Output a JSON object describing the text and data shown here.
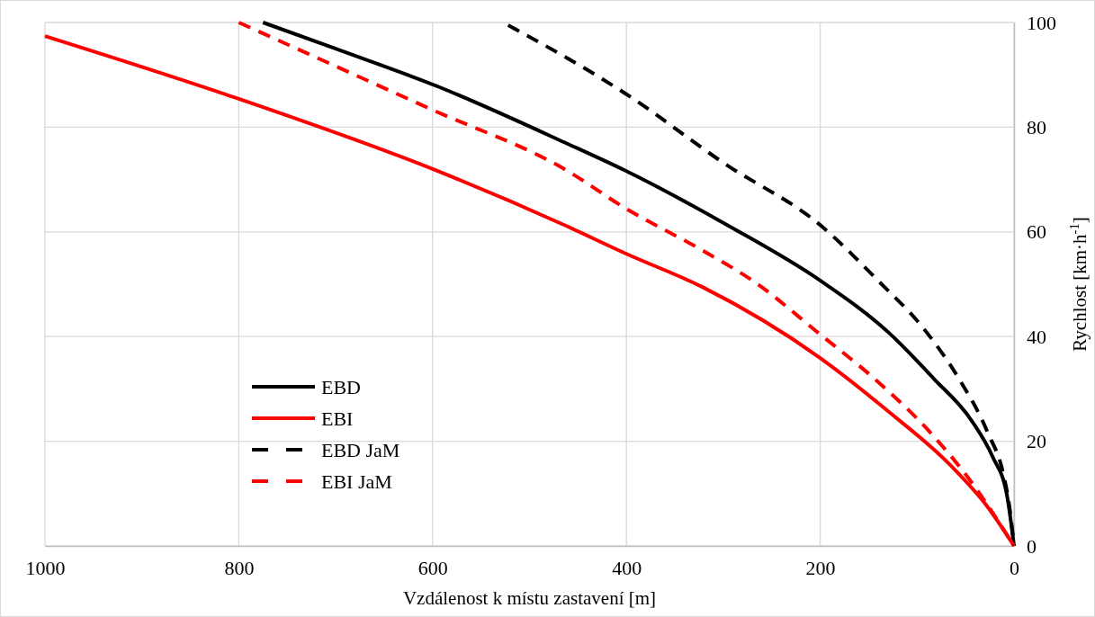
{
  "chart_data": {
    "type": "line",
    "xlabel": "Vzdálenost k místu zastavení [m]",
    "ylabel": "Rychlost [km·h$^{-1}$]",
    "xlim": [
      1000,
      0
    ],
    "xticks": [
      1000,
      800,
      600,
      400,
      200,
      0
    ],
    "ylim": [
      0,
      100
    ],
    "yticks": [
      0,
      20,
      40,
      60,
      80,
      100
    ],
    "grid": true,
    "legend": "bottom left",
    "series": [
      {
        "name": "EBD",
        "color": "#000000",
        "line_style": "solid",
        "x": [
          775,
          700,
          595,
          464,
          400,
          296,
          200,
          129,
          83,
          44,
          22,
          7.4,
          0
        ],
        "values": [
          100,
          95,
          87.8,
          77.1,
          71.6,
          61.3,
          50.7,
          40.7,
          32,
          24,
          17,
          9.8,
          0
        ]
      },
      {
        "name": "EBI",
        "color": "#ff0000",
        "line_style": "solid",
        "x": [
          1000,
          800,
          600,
          464,
          400,
          322,
          200,
          129,
          65,
          27,
          0
        ],
        "values": [
          97.4,
          85.4,
          72,
          61.3,
          55.8,
          49.5,
          35.9,
          25.6,
          15.3,
          7.4,
          0
        ]
      },
      {
        "name": "EBD JaM",
        "color": "#000000",
        "line_style": "dashed",
        "x": [
          522,
          400,
          300,
          198,
          142,
          91,
          57,
          27,
          11,
          4.6,
          0
        ],
        "values": [
          99.5,
          86.3,
          73.2,
          61,
          51,
          41,
          32,
          21.6,
          13.7,
          7.4,
          0
        ]
      },
      {
        "name": "EBI JaM",
        "color": "#ff0000",
        "line_style": "dashed",
        "x": [
          800,
          600,
          464,
          400,
          322,
          266,
          202,
          142,
          86,
          44,
          0
        ],
        "values": [
          100,
          83.3,
          72,
          64.4,
          56.5,
          50.2,
          40.7,
          31.6,
          21.6,
          12.2,
          0
        ]
      }
    ]
  }
}
